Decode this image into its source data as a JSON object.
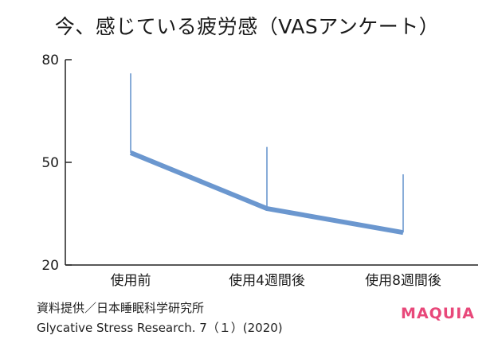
{
  "chart_data": {
    "type": "line",
    "title": "今、感じている疲労感（VASアンケート）",
    "categories": [
      "使用前",
      "使用4週間後",
      "使用8週間後"
    ],
    "yticks": [
      "80",
      "50",
      "20"
    ],
    "ylim": [
      20,
      80
    ],
    "series": [
      {
        "values": [
          52.8,
          36.5,
          29.5
        ],
        "error_upper": [
          76,
          54.5,
          46.5
        ]
      }
    ],
    "grid": false,
    "line_color": "#6b97cf"
  },
  "source": {
    "line1": "資料提供／日本睡眠科学研究所",
    "line2": "Glycative Stress Research. 7（１）(2020)"
  },
  "brand": {
    "text": "MAQUIA",
    "color": "#e8487a"
  }
}
